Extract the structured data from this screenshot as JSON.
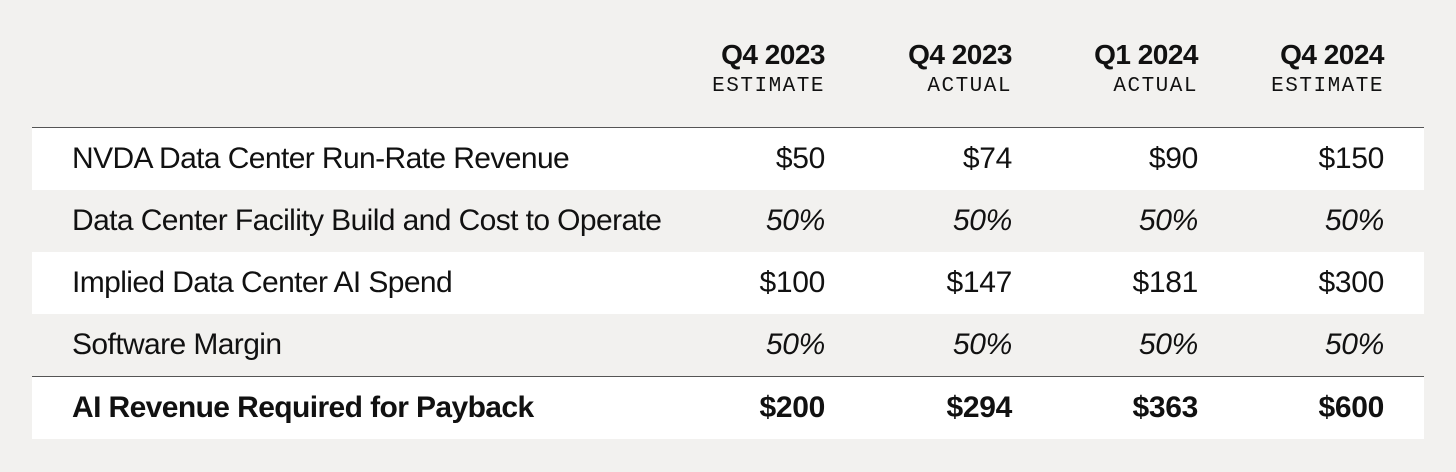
{
  "columns": [
    {
      "period": "Q4 2023",
      "kind": "ESTIMATE"
    },
    {
      "period": "Q4 2023",
      "kind": "ACTUAL"
    },
    {
      "period": "Q1 2024",
      "kind": "ACTUAL"
    },
    {
      "period": "Q4 2024",
      "kind": "ESTIMATE"
    }
  ],
  "rows": [
    {
      "label": "NVDA Data Center Run-Rate Revenue",
      "values": [
        "$50",
        "$74",
        "$90",
        "$150"
      ]
    },
    {
      "label": "Data Center Facility Build and Cost to Operate",
      "values": [
        "50%",
        "50%",
        "50%",
        "50%"
      ]
    },
    {
      "label": "Implied Data Center AI Spend",
      "values": [
        "$100",
        "$147",
        "$181",
        "$300"
      ]
    },
    {
      "label": "Software Margin",
      "values": [
        "50%",
        "50%",
        "50%",
        "50%"
      ]
    }
  ],
  "total": {
    "label": "AI Revenue Required for Payback",
    "values": [
      "$200",
      "$294",
      "$363",
      "$600"
    ]
  }
}
